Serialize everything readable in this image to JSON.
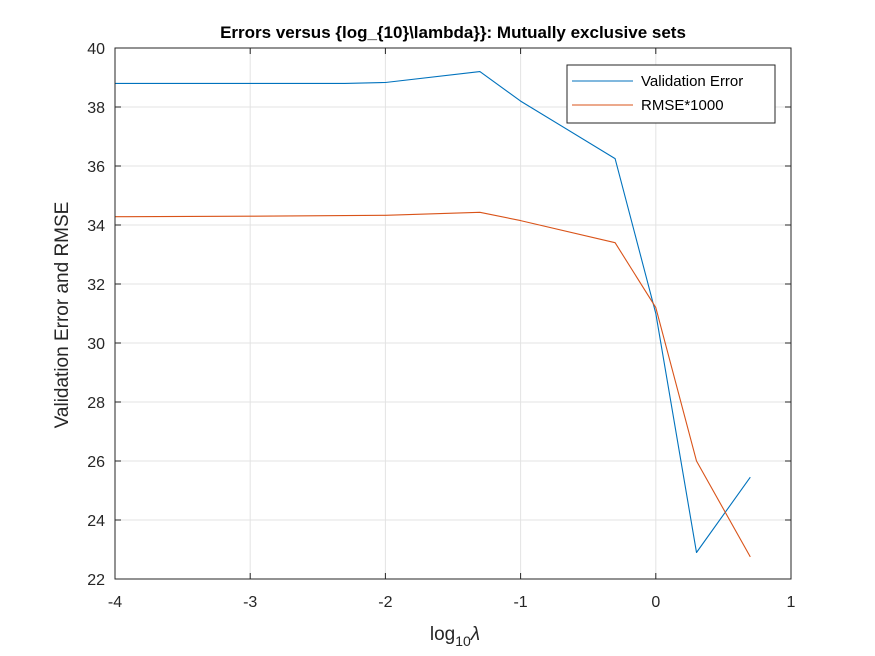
{
  "chart_data": {
    "type": "line",
    "title": "Errors versus {log_{10}\\lambda}}: Mutually exclusive sets",
    "xlabel": {
      "base": "log",
      "subscript": "10",
      "symbol": "λ"
    },
    "ylabel": "Validation Error and RMSE",
    "xlim": [
      -4,
      1
    ],
    "ylim": [
      22,
      40
    ],
    "xticks": [
      "-4",
      "-3",
      "-2",
      "-1",
      "0",
      "1"
    ],
    "yticks": [
      "22",
      "24",
      "26",
      "28",
      "30",
      "32",
      "34",
      "36",
      "38",
      "40"
    ],
    "grid": true,
    "legend_position": "top-right",
    "x": [
      -4,
      -3,
      -2.301,
      -2,
      -1.301,
      -1,
      -0.301,
      0,
      0.301,
      0.699
    ],
    "series": [
      {
        "name": "Validation Error",
        "color": "#0072BD",
        "values": [
          38.8,
          38.8,
          38.8,
          38.83,
          39.2,
          38.2,
          36.25,
          31.0,
          22.9,
          25.45
        ]
      },
      {
        "name": "RMSE*1000",
        "color": "#D95319",
        "values": [
          34.28,
          34.3,
          34.32,
          34.33,
          34.43,
          34.15,
          33.4,
          31.2,
          26.0,
          22.75
        ]
      }
    ]
  }
}
